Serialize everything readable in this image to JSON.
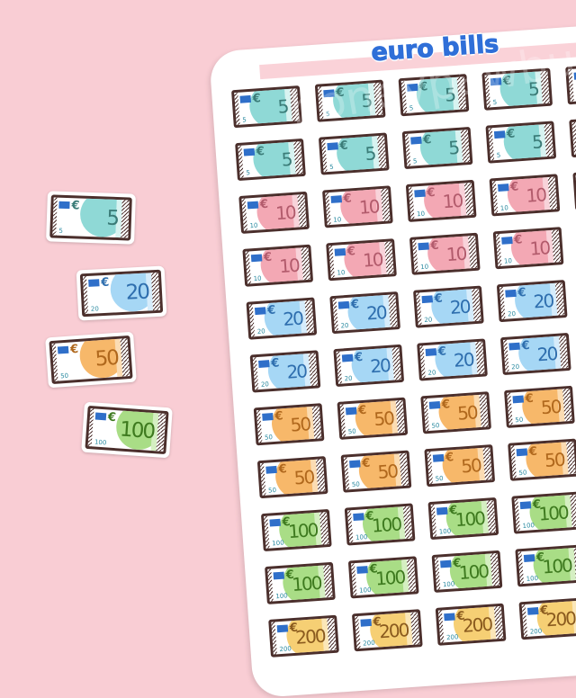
{
  "title": "euro bills",
  "watermark": "honeypawbuns",
  "currency_symbol": "€",
  "denominations": {
    "5": {
      "fill": "#8fd9d6",
      "text": "#3b7c78",
      "band": "#d8f3f1"
    },
    "10": {
      "fill": "#f3a8b4",
      "text": "#b25b6c",
      "band": "#f8d3da"
    },
    "20": {
      "fill": "#a6d7f5",
      "text": "#2e6eae",
      "band": "#d6ecfb"
    },
    "50": {
      "fill": "#f7b86a",
      "text": "#b0681d",
      "band": "#fbdcb3"
    },
    "100": {
      "fill": "#a9dd86",
      "text": "#3e7a1f",
      "band": "#d5efc2"
    },
    "200": {
      "fill": "#f6cf74",
      "text": "#8a5a1e",
      "band": "#fbe7b8"
    }
  },
  "sheet_rows": [
    "5",
    "5",
    "10",
    "10",
    "20",
    "20",
    "50",
    "50",
    "100",
    "100",
    "200"
  ],
  "loose_stickers": [
    "5",
    "20",
    "50",
    "100"
  ]
}
